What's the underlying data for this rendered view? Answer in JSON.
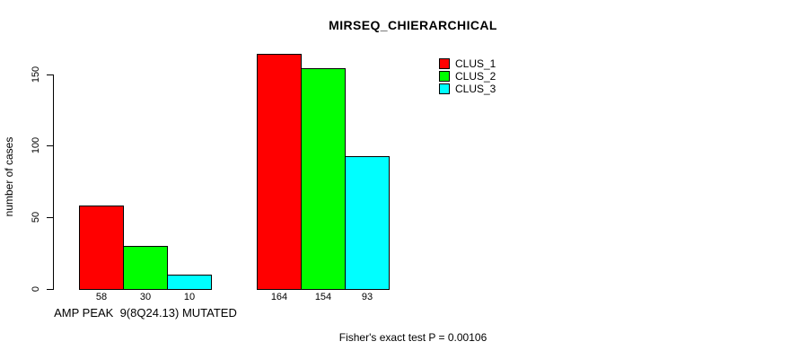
{
  "chart_data": {
    "type": "bar",
    "title": "MIRSEQ_CHIERARCHICAL",
    "ylabel": "number of cases",
    "xlabel": "",
    "yticks": [
      0,
      50,
      100,
      150
    ],
    "ylim": [
      0,
      172
    ],
    "grid": false,
    "legend_position": "top-right",
    "categories": [
      "AMP PEAK  9(8Q24.13) MUTATED",
      ""
    ],
    "series": [
      {
        "name": "CLUS_1",
        "color": "#ff0000",
        "values": [
          58,
          164
        ]
      },
      {
        "name": "CLUS_2",
        "color": "#00ff00",
        "values": [
          30,
          154
        ]
      },
      {
        "name": "CLUS_3",
        "color": "#00ffff",
        "values": [
          10,
          93
        ]
      }
    ],
    "bar_value_labels": [
      [
        "58",
        "30",
        "10"
      ],
      [
        "164",
        "154",
        "93"
      ]
    ],
    "annotation": "Fisher's exact test P = 0.00106"
  }
}
